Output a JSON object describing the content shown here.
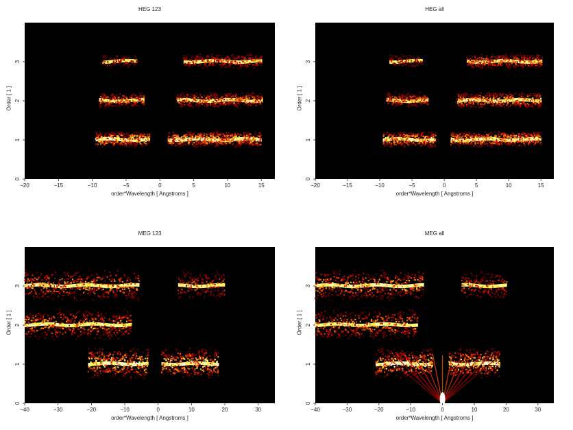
{
  "chart_data": [
    {
      "type": "heatmap",
      "title": "HEG 123",
      "xlabel": "order*Wavelength [ Angstroms ]",
      "ylabel": "Order [ 1 ]",
      "xlim": [
        -20,
        17
      ],
      "ylim": [
        0,
        4
      ],
      "xticks": [
        -20,
        -15,
        -10,
        -5,
        0,
        5,
        10,
        15
      ],
      "yticks": [
        0,
        1,
        2,
        3
      ],
      "colormap": "black-red-orange-yellow-white",
      "features": [
        {
          "order": 1,
          "x_range": [
            -9.5,
            -1.5
          ],
          "intensity": 1.0
        },
        {
          "order": 1,
          "x_range": [
            1.2,
            15.0
          ],
          "intensity": 1.0
        },
        {
          "order": 2,
          "x_range": [
            -9.0,
            -2.5
          ],
          "intensity": 0.7
        },
        {
          "order": 2,
          "x_range": [
            2.5,
            15.0
          ],
          "intensity": 0.8
        },
        {
          "order": 3,
          "x_range": [
            -8.5,
            -3.5
          ],
          "intensity": 0.4
        },
        {
          "order": 3,
          "x_range": [
            3.5,
            15.0
          ],
          "intensity": 0.6
        }
      ]
    },
    {
      "type": "heatmap",
      "title": "HEG all",
      "xlabel": "order*Wavelength [ Angstroms ]",
      "ylabel": "Order [ 1 ]",
      "xlim": [
        -20,
        17
      ],
      "ylim": [
        0,
        4
      ],
      "xticks": [
        -20,
        -15,
        -10,
        -5,
        0,
        5,
        10,
        15
      ],
      "yticks": [
        0,
        1,
        2,
        3
      ],
      "colormap": "black-red-orange-yellow-white",
      "features": [
        {
          "order": 1,
          "x_range": [
            -9.5,
            -1.5
          ],
          "intensity": 1.0
        },
        {
          "order": 1,
          "x_range": [
            1.0,
            15.0
          ],
          "intensity": 1.0
        },
        {
          "order": 2,
          "x_range": [
            -9.0,
            -2.5
          ],
          "intensity": 0.7
        },
        {
          "order": 2,
          "x_range": [
            2.0,
            15.0
          ],
          "intensity": 0.9
        },
        {
          "order": 3,
          "x_range": [
            -8.5,
            -3.5
          ],
          "intensity": 0.4
        },
        {
          "order": 3,
          "x_range": [
            3.5,
            15.0
          ],
          "intensity": 0.7
        }
      ]
    },
    {
      "type": "heatmap",
      "title": "MEG 123",
      "xlabel": "order*Wavelength [ Angstroms ]",
      "ylabel": "Order [ 1 ]",
      "xlim": [
        -40,
        35
      ],
      "ylim": [
        0,
        4
      ],
      "xticks": [
        -40,
        -30,
        -20,
        -10,
        0,
        10,
        20,
        30
      ],
      "yticks": [
        0,
        1,
        2,
        3
      ],
      "colormap": "black-red-orange-yellow-white",
      "features": [
        {
          "order": 1,
          "x_range": [
            -21,
            -3
          ],
          "intensity": 1.0
        },
        {
          "order": 1,
          "x_range": [
            1,
            18
          ],
          "intensity": 1.0
        },
        {
          "order": 2,
          "x_range": [
            -40,
            -8
          ],
          "intensity": 0.8
        },
        {
          "order": 3,
          "x_range": [
            -40,
            -6
          ],
          "intensity": 0.8
        },
        {
          "order": 3,
          "x_range": [
            6,
            20
          ],
          "intensity": 0.6
        }
      ]
    },
    {
      "type": "heatmap",
      "title": "MEG all",
      "xlabel": "order*Wavelength [ Angstroms ]",
      "ylabel": "Order [ 1 ]",
      "xlim": [
        -40,
        35
      ],
      "ylim": [
        0,
        4
      ],
      "xticks": [
        -40,
        -30,
        -20,
        -10,
        0,
        10,
        20,
        30
      ],
      "yticks": [
        0,
        1,
        2,
        3
      ],
      "colormap": "black-red-orange-yellow-white",
      "features": [
        {
          "order": 1,
          "x_range": [
            -21,
            -3
          ],
          "intensity": 1.0
        },
        {
          "order": 1,
          "x_range": [
            2,
            18
          ],
          "intensity": 1.0
        },
        {
          "order": 2,
          "x_range": [
            -40,
            -8
          ],
          "intensity": 0.8
        },
        {
          "order": 3,
          "x_range": [
            -40,
            -6
          ],
          "intensity": 0.8
        },
        {
          "order": 3,
          "x_range": [
            6,
            20
          ],
          "intensity": 0.6
        }
      ]
    }
  ]
}
